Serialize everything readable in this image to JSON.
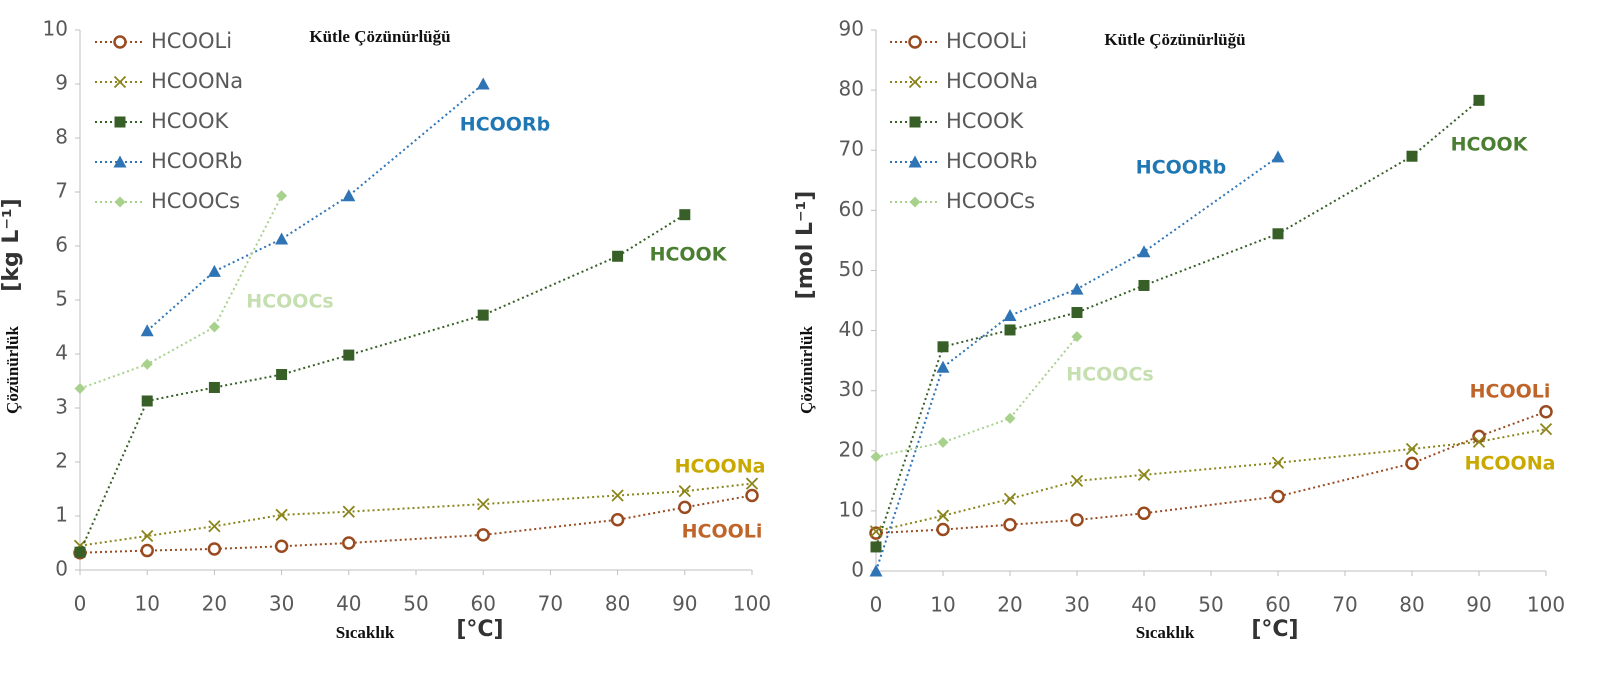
{
  "chart_data": [
    {
      "type": "line",
      "title": "Kütle Çözünürlüğü",
      "x_label": "Sıcaklık",
      "x_unit": "[°C]",
      "y_label": "Çözünürlük",
      "y_unit": "[kg L⁻¹]",
      "xlim": [
        0,
        100
      ],
      "xticks": [
        0,
        10,
        20,
        30,
        40,
        50,
        60,
        70,
        80,
        90,
        100
      ],
      "ylim": [
        0,
        10
      ],
      "yticks": [
        0,
        1,
        2,
        3,
        4,
        5,
        6,
        7,
        8,
        9,
        10
      ],
      "legend": "top-left",
      "series": [
        {
          "name": "HCOOLi",
          "color": "#9a4a1f",
          "marker": "circle",
          "x": [
            0,
            10,
            20,
            30,
            40,
            60,
            80,
            90,
            100
          ],
          "values": [
            0.32,
            0.36,
            0.39,
            0.44,
            0.5,
            0.65,
            0.93,
            1.16,
            1.38
          ]
        },
        {
          "name": "HCOONa",
          "color": "#8a8419",
          "marker": "x",
          "x": [
            0,
            10,
            20,
            30,
            40,
            60,
            80,
            90,
            100
          ],
          "values": [
            0.45,
            0.63,
            0.81,
            1.02,
            1.08,
            1.22,
            1.38,
            1.46,
            1.6
          ]
        },
        {
          "name": "HCOOK",
          "color": "#375f27",
          "marker": "square",
          "x": [
            0,
            10,
            20,
            30,
            40,
            60,
            80,
            90
          ],
          "values": [
            0.33,
            3.13,
            3.38,
            3.62,
            3.98,
            4.72,
            5.81,
            6.58
          ]
        },
        {
          "name": "HCOORb",
          "color": "#2f75b5",
          "marker": "triangle",
          "x": [
            10,
            20,
            30,
            40,
            60
          ],
          "values": [
            4.43,
            5.53,
            6.13,
            6.93,
            9.0
          ]
        },
        {
          "name": "HCOOCs",
          "color": "#a9d18e",
          "marker": "diamond",
          "x": [
            0,
            10,
            20,
            30
          ],
          "values": [
            3.36,
            3.81,
            4.5,
            6.93
          ]
        }
      ],
      "annotations": [
        {
          "text": "HCOORb",
          "color": "#1f77b4"
        },
        {
          "text": "HCOOK",
          "color": "#4a7f32"
        },
        {
          "text": "HCOOCs",
          "color": "#c5dfb0"
        },
        {
          "text": "HCOONa",
          "color": "#c9a800"
        },
        {
          "text": "HCOOLi",
          "color": "#c0652a"
        }
      ]
    },
    {
      "type": "line",
      "title": "Kütle Çözünürlüğü",
      "x_label": "Sıcaklık",
      "x_unit": "[°C]",
      "y_label": "Çözünürlük",
      "y_unit": "[mol L⁻¹]",
      "xlim": [
        0,
        100
      ],
      "xticks": [
        0,
        10,
        20,
        30,
        40,
        50,
        60,
        70,
        80,
        90,
        100
      ],
      "ylim": [
        0,
        90
      ],
      "yticks": [
        0,
        10,
        20,
        30,
        40,
        50,
        60,
        70,
        80,
        90
      ],
      "legend": "top-left",
      "series": [
        {
          "name": "HCOOLi",
          "color": "#9a4a1f",
          "marker": "circle",
          "x": [
            0,
            10,
            20,
            30,
            40,
            60,
            80,
            90,
            100
          ],
          "values": [
            6.3,
            6.9,
            7.7,
            8.5,
            9.6,
            12.4,
            17.9,
            22.4,
            26.5
          ]
        },
        {
          "name": "HCOONa",
          "color": "#8a8419",
          "marker": "x",
          "x": [
            0,
            10,
            20,
            30,
            40,
            60,
            80,
            90,
            100
          ],
          "values": [
            6.6,
            9.2,
            12.0,
            15.0,
            16.0,
            18.0,
            20.3,
            21.5,
            23.6
          ]
        },
        {
          "name": "HCOOK",
          "color": "#375f27",
          "marker": "square",
          "x": [
            0,
            10,
            20,
            30,
            40,
            60,
            80,
            90
          ],
          "values": [
            4.0,
            37.3,
            40.1,
            43.0,
            47.5,
            56.1,
            69.0,
            78.3
          ]
        },
        {
          "name": "HCOORb",
          "color": "#2f75b5",
          "marker": "triangle",
          "x": [
            0,
            10,
            20,
            30,
            40,
            60
          ],
          "values": [
            0,
            33.9,
            42.5,
            46.9,
            53.1,
            68.9
          ]
        },
        {
          "name": "HCOOCs",
          "color": "#a9d18e",
          "marker": "diamond",
          "x": [
            0,
            10,
            20,
            30
          ],
          "values": [
            19.0,
            21.4,
            25.4,
            39.0
          ]
        }
      ],
      "annotations": [
        {
          "text": "HCOORb",
          "color": "#1f77b4"
        },
        {
          "text": "HCOOK",
          "color": "#4a7f32"
        },
        {
          "text": "HCOOCs",
          "color": "#c5dfb0"
        },
        {
          "text": "HCOOLi",
          "color": "#c0652a"
        },
        {
          "text": "HCOONa",
          "color": "#c9a800"
        }
      ]
    }
  ]
}
